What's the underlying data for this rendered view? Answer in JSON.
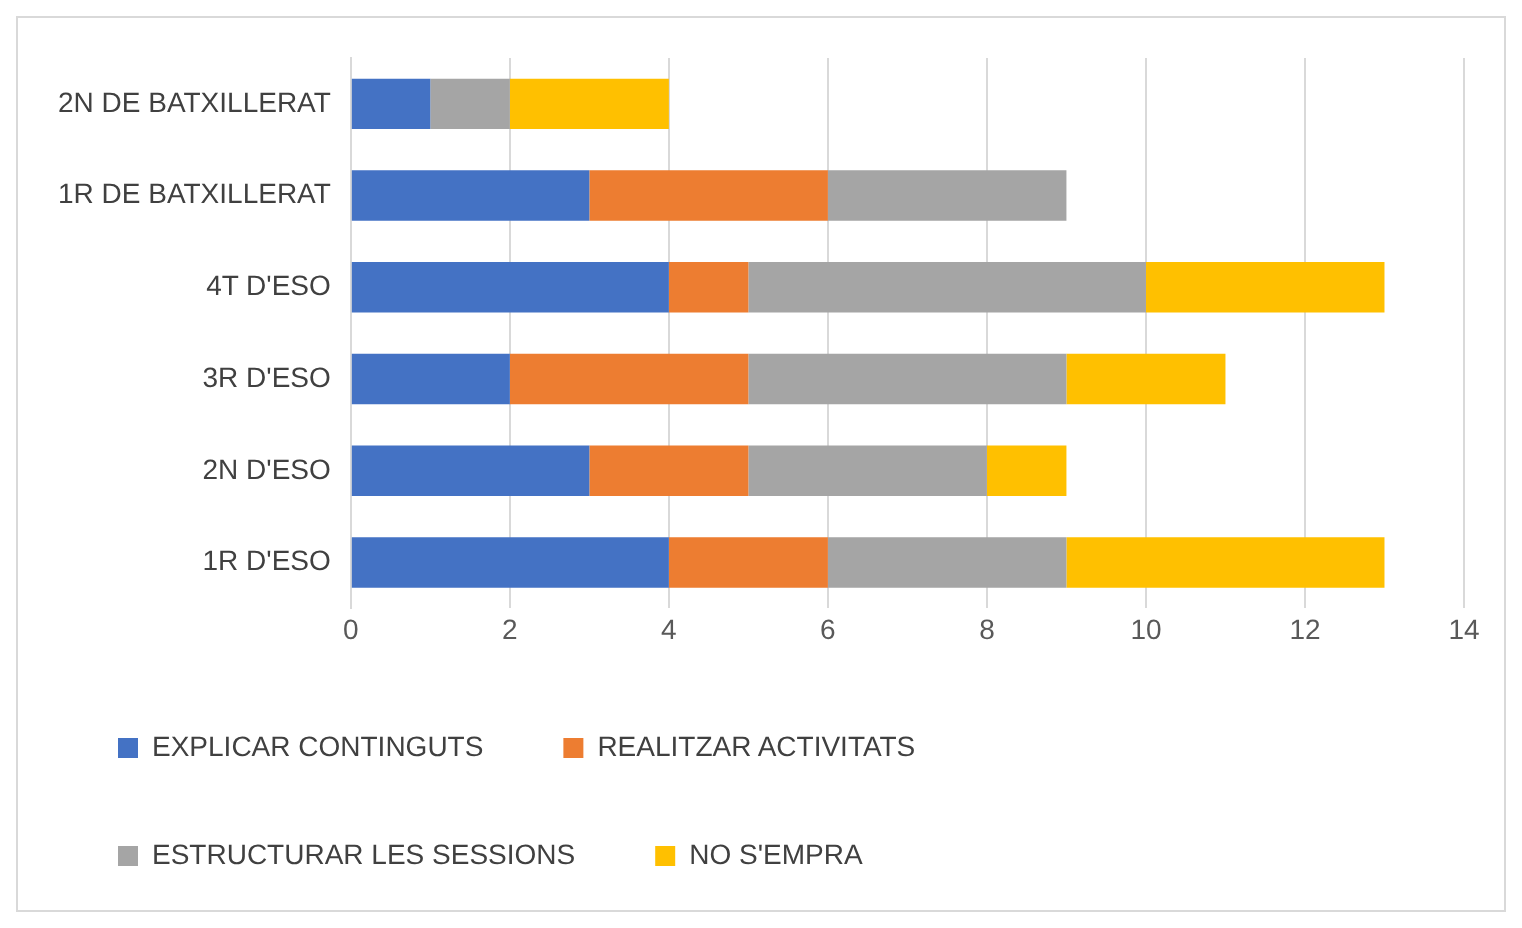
{
  "chart_data": {
    "type": "bar",
    "orientation": "horizontal",
    "stacked": true,
    "categories": [
      "2N DE BATXILLERAT",
      "1R DE BATXILLERAT",
      "4T D'ESO",
      "3R D'ESO",
      "2N D'ESO",
      "1R D'ESO"
    ],
    "series": [
      {
        "name": "EXPLICAR CONTINGUTS",
        "color": "#4472c4",
        "values": [
          1,
          3,
          4,
          2,
          3,
          4
        ]
      },
      {
        "name": "REALITZAR ACTIVITATS",
        "color": "#ed7d31",
        "values": [
          0,
          3,
          1,
          3,
          2,
          2
        ]
      },
      {
        "name": "ESTRUCTURAR LES SESSIONS",
        "color": "#a5a5a5",
        "values": [
          1,
          3,
          5,
          4,
          3,
          3
        ]
      },
      {
        "name": "NO S'EMPRA",
        "color": "#ffc000",
        "values": [
          2,
          0,
          3,
          2,
          1,
          4
        ]
      }
    ],
    "xlim": [
      0,
      14
    ],
    "xticks": [
      0,
      2,
      4,
      6,
      8,
      10,
      12,
      14
    ],
    "grid": "x",
    "legend": "bottom"
  }
}
